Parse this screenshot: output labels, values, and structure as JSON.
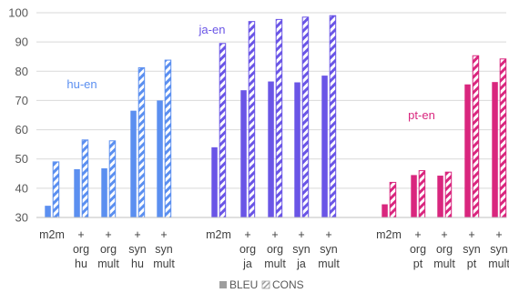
{
  "chart_data": {
    "type": "bar",
    "ylim": [
      30,
      100
    ],
    "yticks": [
      "30",
      "40",
      "50",
      "60",
      "70",
      "80",
      "90",
      "100"
    ],
    "grid": true,
    "legend_position": "bottom",
    "legend": [
      {
        "name": "BLEU",
        "style": "solid"
      },
      {
        "name": "CONS",
        "style": "hatched"
      }
    ],
    "groups": [
      {
        "label": "hu-en",
        "color": "#5B8FF0",
        "categories": [
          [
            "m2m"
          ],
          [
            "+",
            "org",
            "hu"
          ],
          [
            "+",
            "org",
            "mult"
          ],
          [
            "+",
            "syn",
            "hu"
          ],
          [
            "+",
            "syn",
            "mult"
          ]
        ],
        "series": [
          {
            "name": "BLEU",
            "values": [
              34,
              46.5,
              46.8,
              66.5,
              70
            ]
          },
          {
            "name": "CONS",
            "values": [
              49,
              56.5,
              56.2,
              81.2,
              83.8
            ]
          }
        ]
      },
      {
        "label": "ja-en",
        "color": "#6A55E6",
        "categories": [
          [
            "m2m"
          ],
          [
            "+",
            "org",
            "ja"
          ],
          [
            "+",
            "org",
            "mult"
          ],
          [
            "+",
            "syn",
            "ja"
          ],
          [
            "+",
            "syn",
            "mult"
          ]
        ],
        "series": [
          {
            "name": "BLEU",
            "values": [
              54,
              73.5,
              76.5,
              76.2,
              78.5
            ]
          },
          {
            "name": "CONS",
            "values": [
              89.5,
              97,
              97.7,
              98.5,
              99
            ]
          }
        ]
      },
      {
        "label": "pt-en",
        "color": "#D9267E",
        "categories": [
          [
            "m2m"
          ],
          [
            "+",
            "org",
            "pt"
          ],
          [
            "+",
            "org",
            "mult"
          ],
          [
            "+",
            "syn",
            "pt"
          ],
          [
            "+",
            "syn",
            "mult"
          ]
        ],
        "series": [
          {
            "name": "BLEU",
            "values": [
              34.5,
              44.5,
              44.3,
              75.5,
              76.3
            ]
          },
          {
            "name": "CONS",
            "values": [
              42,
              46,
              45.5,
              85.3,
              84.2
            ]
          }
        ]
      }
    ]
  }
}
